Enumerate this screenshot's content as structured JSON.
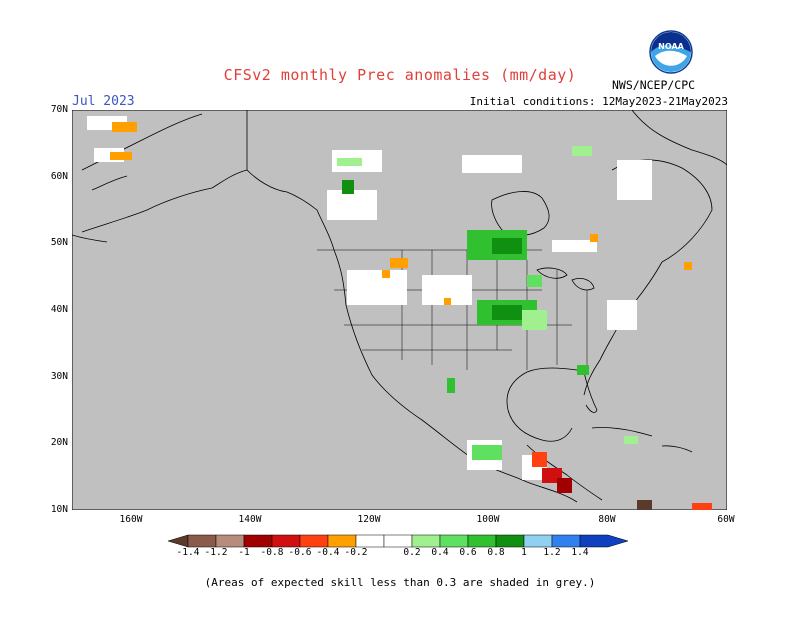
{
  "title": "CFSv2 monthly Prec anomalies (mm/day)",
  "month_label": "Jul 2023",
  "initial_conditions": "Initial conditions: 12May2023-21May2023",
  "agency": "NWS/NCEP/CPC",
  "logo_text": "NOAA",
  "map": {
    "lat_labels": [
      "70N",
      "60N",
      "50N",
      "40N",
      "30N",
      "20N",
      "10N"
    ],
    "lon_labels": [
      "160W",
      "140W",
      "120W",
      "100W",
      "80W",
      "60W"
    ],
    "background": "#c0c0c0"
  },
  "colorbar": {
    "labels": [
      "-1.4",
      "-1.2",
      "-1",
      "-0.8",
      "-0.6",
      "-0.4",
      "-0.2",
      "0.2",
      "0.4",
      "0.6",
      "0.8",
      "1",
      "1.2",
      "1.4"
    ],
    "colors": [
      "#5a3a2a",
      "#8b5a4a",
      "#b88c7c",
      "#a00000",
      "#d01010",
      "#ff4010",
      "#ffa000",
      "#ffffff",
      "#a0f090",
      "#60e060",
      "#30c030",
      "#109010",
      "#90d0f0",
      "#3080f0",
      "#1040c0"
    ]
  },
  "footnote": "(Areas of expected skill less than 0.3 are shaded in grey.)"
}
